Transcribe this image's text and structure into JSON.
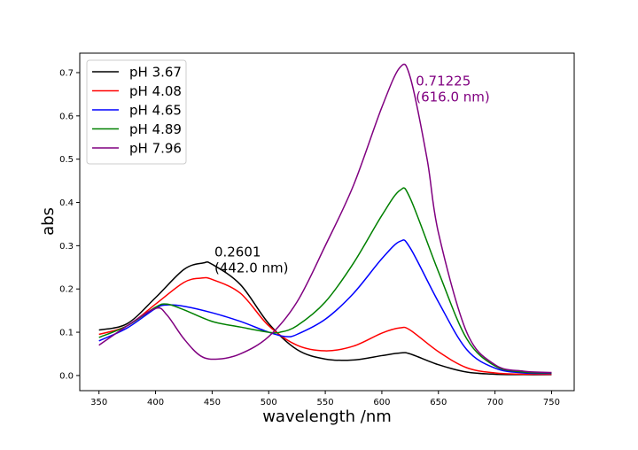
{
  "chart_data": {
    "type": "line",
    "title": "",
    "xlabel": "wavelength /nm",
    "ylabel": "abs",
    "xlim": [
      333,
      770
    ],
    "ylim": [
      -0.035,
      0.745
    ],
    "xticks": [
      350,
      400,
      450,
      500,
      550,
      600,
      650,
      700,
      750
    ],
    "yticks": [
      0.0,
      0.1,
      0.2,
      0.3,
      0.4,
      0.5,
      0.6,
      0.7
    ],
    "ytick_labels": [
      "0.0",
      "0.1",
      "0.2",
      "0.3",
      "0.4",
      "0.5",
      "0.6",
      "0.7"
    ],
    "grid": false,
    "legend_position": "top-left",
    "series": [
      {
        "name": "pH 3.67",
        "color": "#000000",
        "x": [
          350,
          375,
          400,
          425,
          442,
          450,
          475,
          500,
          525,
          550,
          575,
          600,
          616,
          625,
          650,
          675,
          700,
          725,
          750
        ],
        "y": [
          0.105,
          0.12,
          0.18,
          0.245,
          0.26,
          0.257,
          0.21,
          0.12,
          0.06,
          0.038,
          0.036,
          0.046,
          0.052,
          0.05,
          0.025,
          0.008,
          0.003,
          0.002,
          0.002
        ]
      },
      {
        "name": "pH 4.08",
        "color": "#ff0000",
        "x": [
          350,
          375,
          400,
          425,
          440,
          450,
          475,
          500,
          525,
          550,
          575,
          600,
          616,
          625,
          650,
          675,
          700,
          725,
          750
        ],
        "y": [
          0.095,
          0.115,
          0.165,
          0.215,
          0.225,
          0.222,
          0.19,
          0.115,
          0.07,
          0.057,
          0.068,
          0.098,
          0.11,
          0.105,
          0.055,
          0.018,
          0.006,
          0.003,
          0.003
        ]
      },
      {
        "name": "pH 4.65",
        "color": "#0000ff",
        "x": [
          350,
          375,
          400,
          410,
          425,
          450,
          475,
          500,
          515,
          525,
          550,
          575,
          600,
          616,
          625,
          650,
          675,
          700,
          725,
          750
        ],
        "y": [
          0.08,
          0.11,
          0.155,
          0.163,
          0.16,
          0.145,
          0.125,
          0.1,
          0.09,
          0.095,
          0.13,
          0.19,
          0.27,
          0.31,
          0.295,
          0.17,
          0.06,
          0.017,
          0.006,
          0.005
        ]
      },
      {
        "name": "pH 4.89",
        "color": "#008000",
        "x": [
          350,
          375,
          400,
          410,
          425,
          450,
          475,
          500,
          510,
          525,
          550,
          575,
          600,
          616,
          625,
          650,
          675,
          700,
          725,
          750
        ],
        "y": [
          0.088,
          0.115,
          0.158,
          0.165,
          0.152,
          0.125,
          0.112,
          0.1,
          0.1,
          0.115,
          0.17,
          0.26,
          0.37,
          0.428,
          0.41,
          0.24,
          0.085,
          0.022,
          0.008,
          0.006
        ]
      },
      {
        "name": "pH 7.96",
        "color": "#800080",
        "x": [
          350,
          375,
          400,
          410,
          425,
          440,
          455,
          475,
          500,
          525,
          550,
          575,
          600,
          616,
          625,
          640,
          650,
          675,
          700,
          725,
          750
        ],
        "y": [
          0.07,
          0.115,
          0.155,
          0.14,
          0.085,
          0.045,
          0.038,
          0.05,
          0.09,
          0.17,
          0.3,
          0.44,
          0.62,
          0.712,
          0.69,
          0.5,
          0.33,
          0.1,
          0.025,
          0.01,
          0.007
        ]
      }
    ],
    "annotations": [
      {
        "lines": [
          "0.2601",
          "(442.0 nm)"
        ],
        "x": 452,
        "y": 0.275,
        "color": "#000000"
      },
      {
        "lines": [
          "0.71225",
          "(616.0 nm)"
        ],
        "x": 630,
        "y": 0.67,
        "color": "#800080"
      }
    ]
  }
}
